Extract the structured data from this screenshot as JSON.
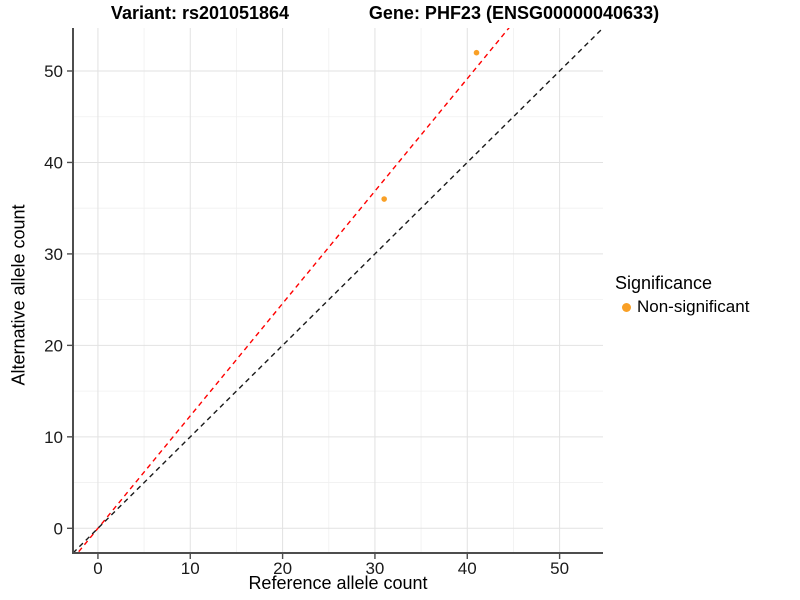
{
  "titles": {
    "variant": "Variant: rs201051864",
    "gene": "Gene: PHF23 (ENSG00000040633)"
  },
  "axes": {
    "x": {
      "label": "Reference allele count"
    },
    "y": {
      "label": "Alternative allele count"
    }
  },
  "legend": {
    "title": "Significance",
    "items": [
      {
        "label": "Non-significant",
        "color": "#F9A026"
      }
    ]
  },
  "colors": {
    "grid_major": "#E2E2E2",
    "grid_minor": "#F0F0F0",
    "axis_line": "#4D4D4D",
    "tick_label": "#1A1A1A",
    "fit_line": "#FF0000",
    "identity_line": "#1A1A1A",
    "point": "#F9A026"
  },
  "chart_data": {
    "type": "scatter",
    "title_left": "Variant: rs201051864",
    "title_right": "Gene: PHF23 (ENSG00000040633)",
    "xlabel": "Reference allele count",
    "ylabel": "Alternative allele count",
    "xlim": [
      -2.7,
      54.7
    ],
    "ylim": [
      -2.7,
      54.7
    ],
    "x_major_ticks": [
      0,
      10,
      20,
      30,
      40,
      50
    ],
    "x_minor_ticks": [
      5,
      15,
      25,
      35,
      45
    ],
    "y_major_ticks": [
      0,
      10,
      20,
      30,
      40,
      50
    ],
    "y_minor_ticks": [
      5,
      15,
      25,
      35,
      45
    ],
    "grid": "major+minor",
    "legend_position": "right",
    "series": [
      {
        "name": "Non-significant",
        "color": "#F9A026",
        "points": [
          {
            "x": 41,
            "y": 52
          },
          {
            "x": 31,
            "y": 36
          }
        ]
      }
    ],
    "reference_lines": [
      {
        "name": "fit-line",
        "slope": 1.229,
        "intercept": 0,
        "color": "#FF0000",
        "style": "dashed"
      },
      {
        "name": "identity-line",
        "slope": 1.0,
        "intercept": 0,
        "color": "#1A1A1A",
        "style": "dashed"
      }
    ]
  }
}
